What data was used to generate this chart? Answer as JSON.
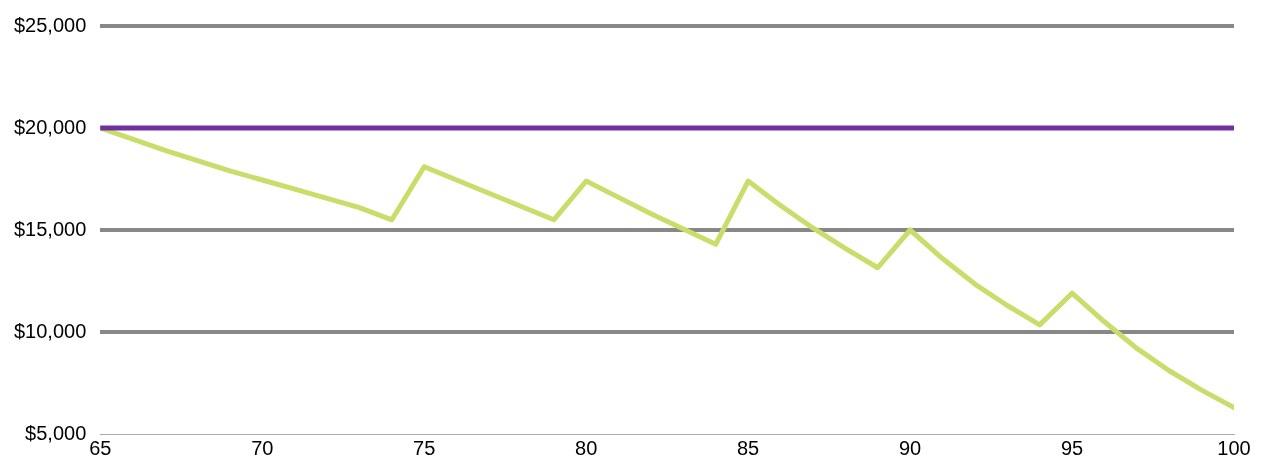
{
  "chart_data": {
    "type": "line",
    "x": [
      65,
      66,
      67,
      68,
      69,
      70,
      71,
      72,
      73,
      74,
      75,
      76,
      77,
      78,
      79,
      80,
      81,
      82,
      83,
      84,
      85,
      86,
      87,
      88,
      89,
      90,
      91,
      92,
      93,
      94,
      95,
      96,
      97,
      98,
      99,
      100
    ],
    "series": [
      {
        "color": "#7030a0",
        "values": [
          20000,
          20000,
          20000,
          20000,
          20000,
          20000,
          20000,
          20000,
          20000,
          20000,
          20000,
          20000,
          20000,
          20000,
          20000,
          20000,
          20000,
          20000,
          20000,
          20000,
          20000,
          20000,
          20000,
          20000,
          20000,
          20000,
          20000,
          20000,
          20000,
          20000,
          20000,
          20000,
          20000,
          20000,
          20000,
          20000
        ]
      },
      {
        "color": "#c9dd6b",
        "values": [
          20000,
          19450,
          18900,
          18400,
          17900,
          17450,
          17000,
          16550,
          16100,
          15500,
          18100,
          17450,
          16800,
          16150,
          15500,
          17400,
          16600,
          15800,
          15050,
          14300,
          17400,
          16200,
          15100,
          14100,
          13150,
          15000,
          13600,
          12350,
          11300,
          10350,
          11900,
          10500,
          9200,
          8100,
          7150,
          6300
        ]
      }
    ],
    "xlim": [
      65,
      100
    ],
    "xticks": [
      65,
      70,
      75,
      80,
      85,
      90,
      95,
      100
    ],
    "ylim": [
      5000,
      25000
    ],
    "yticks": [
      {
        "value": 5000,
        "label": "$5,000"
      },
      {
        "value": 10000,
        "label": "$10,000"
      },
      {
        "value": 15000,
        "label": "$15,000"
      },
      {
        "value": 20000,
        "label": "$20,000"
      },
      {
        "value": 25000,
        "label": "$25,000"
      }
    ],
    "grid": "y",
    "legend": false,
    "marker": "none",
    "line_style": "solid"
  }
}
